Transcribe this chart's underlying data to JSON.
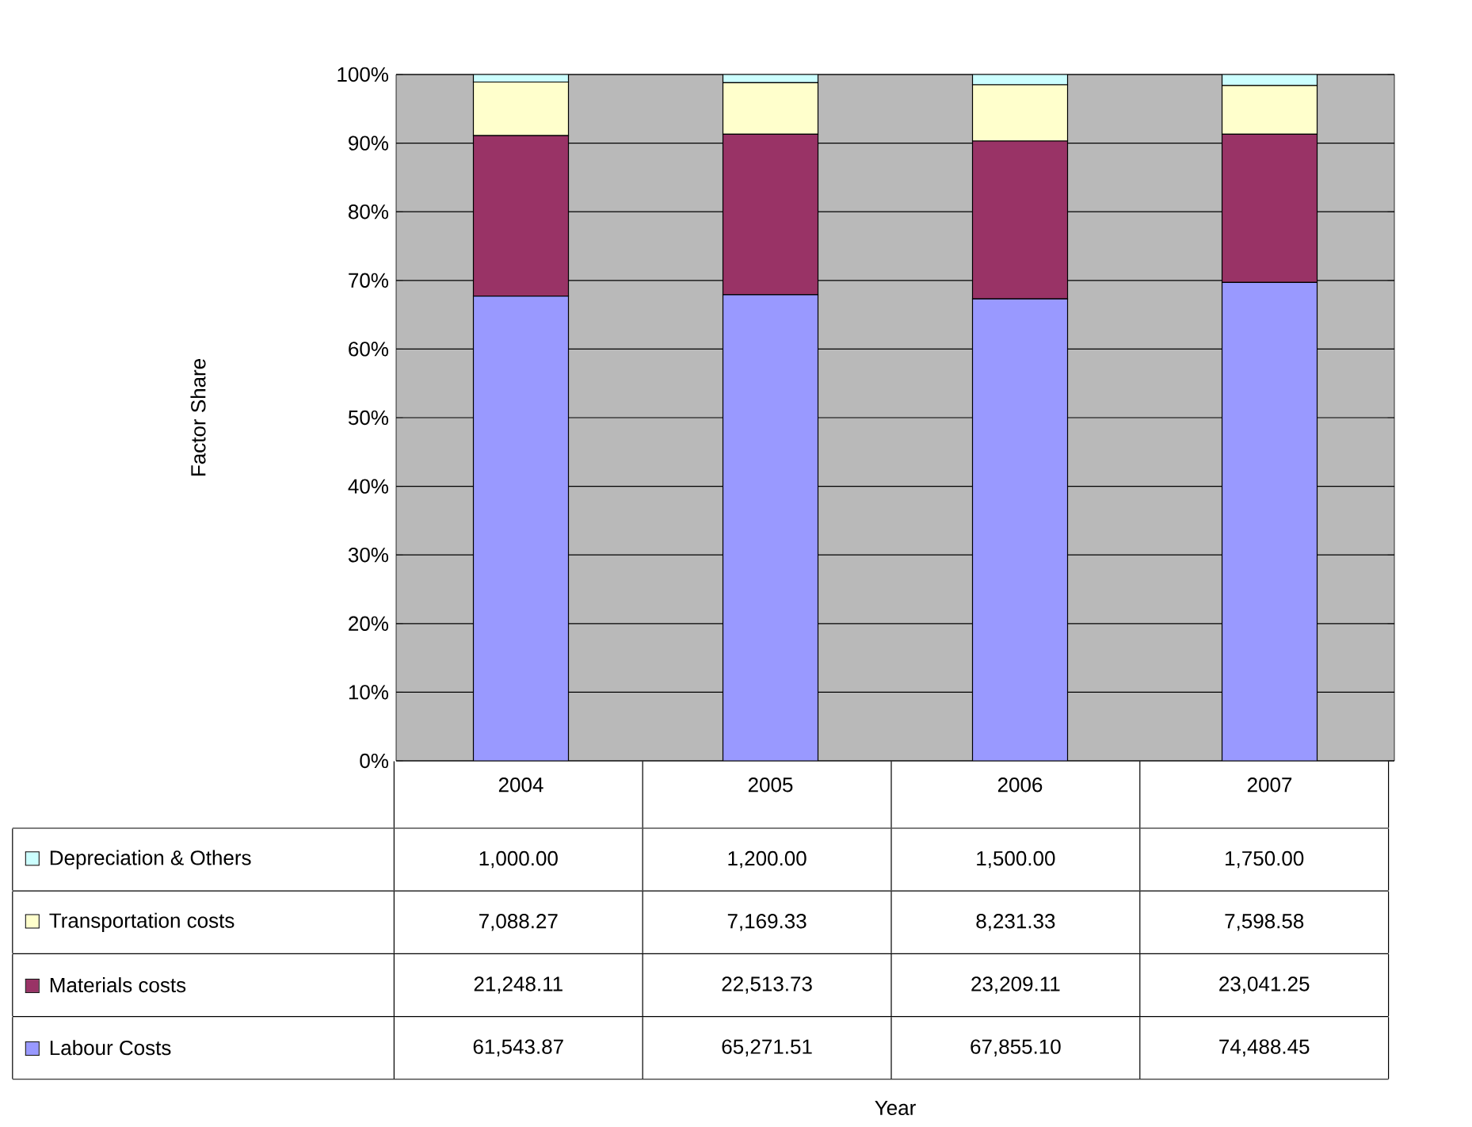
{
  "chart_data": [
    {
      "type": "bar",
      "stacked": true,
      "ylabel": "Factor Share",
      "xlabel": "Year",
      "categories": [
        "2004",
        "2005",
        "2006",
        "2007"
      ],
      "ylim": [
        0,
        100
      ],
      "yticks": [
        {
          "value": 0,
          "label": "0%"
        },
        {
          "value": 10,
          "label": "10%"
        },
        {
          "value": 20,
          "label": "20%"
        },
        {
          "value": 30,
          "label": "30%"
        },
        {
          "value": 40,
          "label": "40%"
        },
        {
          "value": 50,
          "label": "50%"
        },
        {
          "value": 60,
          "label": "60%"
        },
        {
          "value": 70,
          "label": "70%"
        },
        {
          "value": 80,
          "label": "80%"
        },
        {
          "value": 90,
          "label": "90%"
        },
        {
          "value": 100,
          "label": "100%"
        }
      ],
      "grid": "y",
      "legend": "left",
      "series": [
        {
          "name": "Labour Costs",
          "color": "#9999ff",
          "values": [
            67.7,
            67.9,
            67.3,
            69.7
          ]
        },
        {
          "name": "Materials costs",
          "color": "#993366",
          "values": [
            23.4,
            23.4,
            23.0,
            21.6
          ]
        },
        {
          "name": "Transportation costs",
          "color": "#ffffcc",
          "values": [
            7.8,
            7.5,
            8.2,
            7.1
          ]
        },
        {
          "name": "Depreciation & Others",
          "color": "#ccffff",
          "values": [
            1.1,
            1.2,
            1.5,
            1.6
          ]
        }
      ]
    },
    {
      "type": "other",
      "annotations": [
        "1,000.00",
        "1,200.00",
        "1,500.00",
        "1,750.00",
        "7,088.27",
        "7,169.33",
        "8,231.33",
        "7,598.58",
        "21,248.11",
        "22,513.73",
        "23,209.11",
        "23,041.25",
        "61,543.87",
        "65,271.51",
        "67,855.10",
        "74,488.45"
      ]
    }
  ]
}
